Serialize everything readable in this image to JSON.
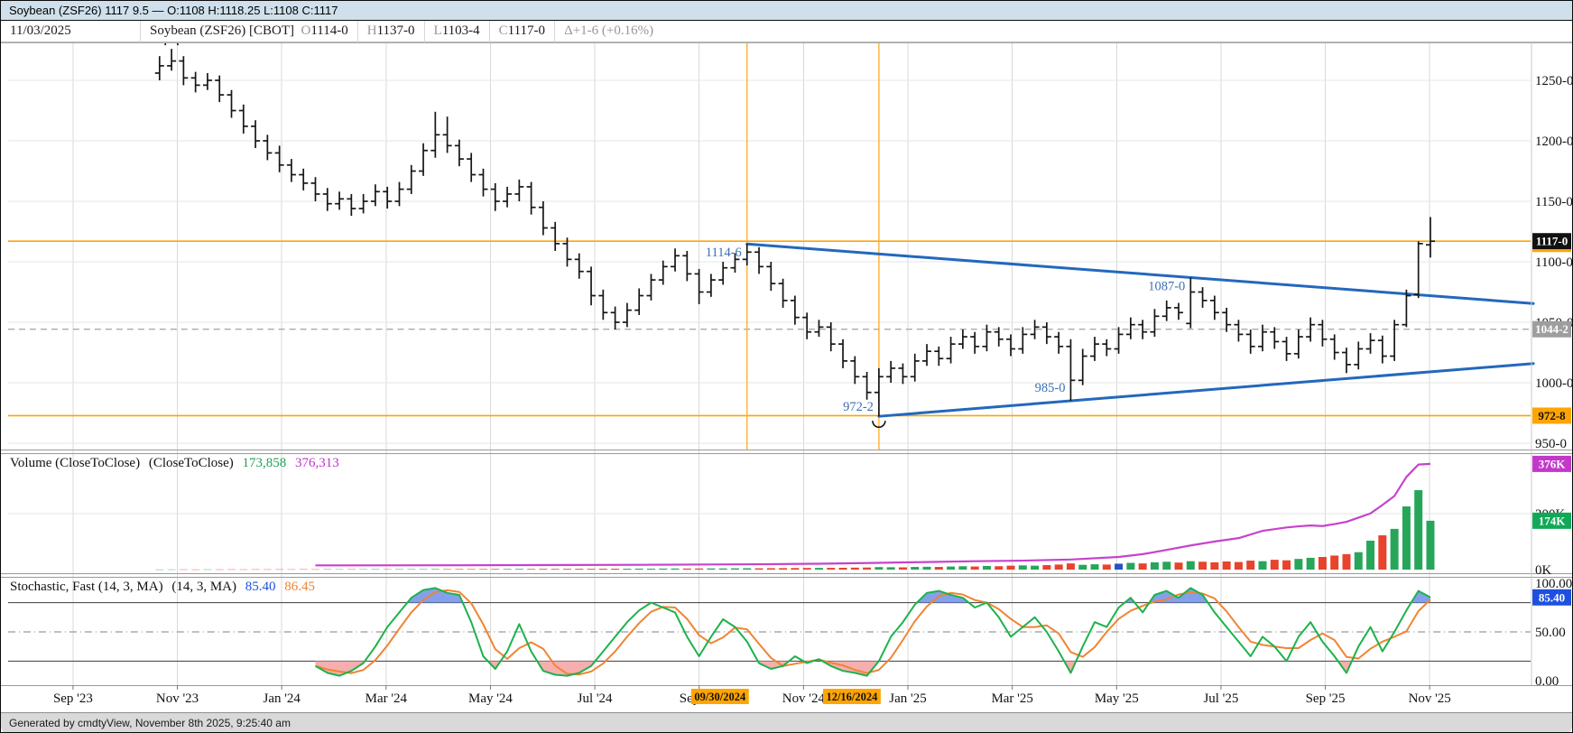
{
  "top_bar": {
    "title": "Soybean (ZSF26) 1117 9.5 — O:1108 H:1118.25 L:1108 C:1117"
  },
  "chart_header": {
    "date": "11/03/2025",
    "symbol": "Soybean (ZSF26) [CBOT]",
    "o_label": "O",
    "o_value": "1114-0",
    "h_label": "H",
    "h_value": "1137-0",
    "l_label": "L",
    "l_value": "1103-4",
    "c_label": "C",
    "c_value": "1117-0",
    "change": "Δ+1-6 (+0.16%)"
  },
  "volume_legend": {
    "title": "Volume (CloseToClose)",
    "sub": "(CloseToClose)",
    "volume_value": "173,858",
    "oi_value": "376,313"
  },
  "stoch_legend": {
    "title": "Stochastic, Fast (14, 3, MA)",
    "sub": "(14, 3, MA)",
    "k_value": "85.40",
    "d_value": "86.45"
  },
  "footer": {
    "text": "Generated by cmdtyView, November 8th 2025, 9:25:40 am"
  },
  "colors": {
    "topbar_bg": "#cfe0ec",
    "bar_black": "#161616",
    "accent_orange": "#FFA500",
    "line_orange": "#FFB033",
    "trend_blue": "#2368BC",
    "anno_blue": "#3C6FB1",
    "grid_v": "#d9d9d9",
    "grid_h": "#e6e6e6",
    "vol_up": "#27A65A",
    "vol_down": "#E8432C",
    "vol_blue": "#2353C4",
    "oi_magenta": "#C643CC",
    "stoch_k_green": "#1DB24B",
    "stoch_d_orange": "#F08433",
    "stoch_fill_blue": "#6E8FE8",
    "stoch_fill_red": "#F5A0A0",
    "badge_gray": "#9E9E9E",
    "badge_green": "#0FA958",
    "badge_magenta": "#C238C9",
    "badge_blue": "#1D50E0"
  },
  "chart_data": {
    "type": "ohlc",
    "title": "Soybean (ZSF26) [CBOT] weekly",
    "price_range": [
      944,
      1282
    ],
    "x_ticks": [
      "Sep '23",
      "Nov '23",
      "Jan '24",
      "Mar '24",
      "May '24",
      "Jul '24",
      "Sep '24",
      "Nov '24",
      "Jan '25",
      "Mar '25",
      "May '25",
      "Jul '25",
      "Sep '25",
      "Nov '25"
    ],
    "date_flags": [
      {
        "label": "09/30/2024",
        "week": 49
      },
      {
        "label": "12/16/2024",
        "week": 60
      }
    ],
    "right_axis": {
      "price_ticks": [
        [
          "1250-0",
          1250
        ],
        [
          "1200-0",
          1200
        ],
        [
          "1150-0",
          1150
        ],
        [
          "1100-0",
          1100
        ],
        [
          "1050-0",
          1050
        ],
        [
          "1000-0",
          1000
        ],
        [
          "950-0",
          950
        ]
      ],
      "volume_ticks": [
        [
          "0K",
          0
        ],
        [
          "200K",
          200
        ]
      ],
      "stoch_ticks": [
        [
          "100.00",
          100
        ],
        [
          "50.00",
          50
        ],
        [
          "0.00",
          0
        ]
      ],
      "badges": [
        {
          "panel": "main",
          "value": 1117,
          "label": "1117-0",
          "bg": "#111111",
          "fg": "#ffffff",
          "accent": "#FFA500"
        },
        {
          "panel": "main",
          "value": 1044.25,
          "label": "1044-2",
          "bg": "#9E9E9E",
          "fg": "#ffffff"
        },
        {
          "panel": "main",
          "value": 972.8,
          "label": "972-8",
          "bg": "#FFA500",
          "fg": "#111111"
        },
        {
          "panel": "vol",
          "value": 376.3,
          "label": "376K",
          "bg": "#C238C9",
          "fg": "#ffffff"
        },
        {
          "panel": "vol",
          "value": 174,
          "label": "174K",
          "bg": "#0FA958",
          "fg": "#ffffff"
        },
        {
          "panel": "stoch",
          "value": 85.4,
          "label": "85.40",
          "bg": "#1D50E0",
          "fg": "#ffffff"
        }
      ]
    },
    "levels": {
      "last_price": 1117,
      "dashed_level": 1044.25,
      "support_level": 972.8,
      "event_weeks": [
        49,
        60
      ]
    },
    "trendlines": [
      {
        "week": 49,
        "price": 1114.75,
        "end_price": 1065.5
      },
      {
        "week": 60,
        "price": 972.25,
        "end_price": 1015.9
      }
    ],
    "annotations": [
      {
        "text": "1114-6",
        "week": 49,
        "price": 1114.75,
        "dy": 14
      },
      {
        "text": "972-2",
        "week": 60,
        "price": 972.25,
        "dy": -6
      },
      {
        "text": "985-0",
        "week": 76,
        "price": 985,
        "dy": -10
      },
      {
        "text": "1087-0",
        "week": 86,
        "price": 1087,
        "dy": 14
      }
    ],
    "swing_markers": [
      {
        "type": "high",
        "week": 1,
        "price": 1276
      },
      {
        "type": "low",
        "week": 60,
        "price": 972.25
      }
    ],
    "bars": [
      [
        1256,
        1270,
        1250,
        1262
      ],
      [
        1262,
        1276,
        1258,
        1266
      ],
      [
        1266,
        1270,
        1246,
        1252
      ],
      [
        1252,
        1257,
        1240,
        1246
      ],
      [
        1246,
        1256,
        1242,
        1250
      ],
      [
        1250,
        1254,
        1232,
        1238
      ],
      [
        1238,
        1242,
        1219,
        1225
      ],
      [
        1225,
        1230,
        1206,
        1212
      ],
      [
        1212,
        1217,
        1194,
        1200
      ],
      [
        1200,
        1205,
        1184,
        1190
      ],
      [
        1190,
        1196,
        1174,
        1180
      ],
      [
        1180,
        1185,
        1166,
        1172
      ],
      [
        1172,
        1177,
        1159,
        1165
      ],
      [
        1165,
        1170,
        1150,
        1156
      ],
      [
        1156,
        1161,
        1142,
        1148
      ],
      [
        1148,
        1158,
        1143,
        1152
      ],
      [
        1152,
        1156,
        1138,
        1144
      ],
      [
        1144,
        1156,
        1140,
        1150
      ],
      [
        1150,
        1164,
        1146,
        1158
      ],
      [
        1158,
        1162,
        1144,
        1150
      ],
      [
        1150,
        1166,
        1146,
        1160
      ],
      [
        1160,
        1180,
        1156,
        1175
      ],
      [
        1175,
        1198,
        1171,
        1192
      ],
      [
        1192,
        1224,
        1186,
        1205
      ],
      [
        1205,
        1220,
        1190,
        1196
      ],
      [
        1196,
        1201,
        1179,
        1185
      ],
      [
        1185,
        1190,
        1166,
        1172
      ],
      [
        1172,
        1177,
        1154,
        1160
      ],
      [
        1160,
        1165,
        1142,
        1150
      ],
      [
        1150,
        1162,
        1145,
        1156
      ],
      [
        1156,
        1168,
        1150,
        1162
      ],
      [
        1162,
        1166,
        1139,
        1145
      ],
      [
        1145,
        1150,
        1122,
        1128
      ],
      [
        1128,
        1133,
        1109,
        1115
      ],
      [
        1115,
        1120,
        1096,
        1102
      ],
      [
        1102,
        1107,
        1086,
        1092
      ],
      [
        1092,
        1096,
        1064,
        1072
      ],
      [
        1072,
        1077,
        1052,
        1058
      ],
      [
        1058,
        1063,
        1044,
        1050
      ],
      [
        1050,
        1066,
        1046,
        1060
      ],
      [
        1060,
        1078,
        1056,
        1072
      ],
      [
        1072,
        1090,
        1068,
        1085
      ],
      [
        1085,
        1101,
        1081,
        1096
      ],
      [
        1096,
        1111,
        1092,
        1105
      ],
      [
        1105,
        1109,
        1084,
        1090
      ],
      [
        1090,
        1094,
        1065,
        1075
      ],
      [
        1075,
        1090,
        1071,
        1085
      ],
      [
        1085,
        1100,
        1081,
        1095
      ],
      [
        1095,
        1107,
        1091,
        1102
      ],
      [
        1102,
        1114.75,
        1097,
        1108
      ],
      [
        1108,
        1112,
        1090,
        1096
      ],
      [
        1096,
        1100,
        1076,
        1082
      ],
      [
        1082,
        1086,
        1062,
        1068
      ],
      [
        1068,
        1072,
        1048,
        1054
      ],
      [
        1054,
        1058,
        1036,
        1042
      ],
      [
        1042,
        1052,
        1038,
        1046
      ],
      [
        1046,
        1050,
        1026,
        1032
      ],
      [
        1032,
        1036,
        1012,
        1018
      ],
      [
        1018,
        1022,
        999,
        1005
      ],
      [
        1005,
        1009,
        986,
        992
      ],
      [
        992,
        1012,
        972.25,
        1005
      ],
      [
        1005,
        1018,
        1000,
        1012
      ],
      [
        1012,
        1016,
        999,
        1005
      ],
      [
        1005,
        1024,
        1001,
        1018
      ],
      [
        1018,
        1032,
        1014,
        1026
      ],
      [
        1026,
        1030,
        1014,
        1020
      ],
      [
        1020,
        1038,
        1016,
        1032
      ],
      [
        1032,
        1044,
        1028,
        1038
      ],
      [
        1038,
        1042,
        1024,
        1030
      ],
      [
        1030,
        1048,
        1026,
        1042
      ],
      [
        1042,
        1046,
        1030,
        1036
      ],
      [
        1036,
        1040,
        1022,
        1028
      ],
      [
        1028,
        1046,
        1024,
        1040
      ],
      [
        1040,
        1052,
        1036,
        1046
      ],
      [
        1046,
        1050,
        1032,
        1038
      ],
      [
        1038,
        1042,
        1024,
        1030
      ],
      [
        1030,
        1036,
        985,
        1002
      ],
      [
        1002,
        1028,
        998,
        1022
      ],
      [
        1022,
        1038,
        1018,
        1032
      ],
      [
        1032,
        1036,
        1022,
        1028
      ],
      [
        1028,
        1046,
        1024,
        1040
      ],
      [
        1040,
        1054,
        1036,
        1048
      ],
      [
        1048,
        1052,
        1036,
        1042
      ],
      [
        1042,
        1061,
        1038,
        1055
      ],
      [
        1055,
        1068,
        1051,
        1062
      ],
      [
        1062,
        1066,
        1052,
        1058
      ],
      [
        1049,
        1087,
        1045,
        1075
      ],
      [
        1075,
        1079,
        1062,
        1068
      ],
      [
        1068,
        1072,
        1052,
        1058
      ],
      [
        1058,
        1062,
        1042,
        1048
      ],
      [
        1048,
        1052,
        1034,
        1040
      ],
      [
        1040,
        1044,
        1024,
        1030
      ],
      [
        1030,
        1048,
        1026,
        1042
      ],
      [
        1042,
        1046,
        1028,
        1034
      ],
      [
        1034,
        1038,
        1018,
        1024
      ],
      [
        1024,
        1044,
        1020,
        1038
      ],
      [
        1038,
        1054,
        1034,
        1048
      ],
      [
        1048,
        1052,
        1030,
        1036
      ],
      [
        1036,
        1040,
        1019,
        1025
      ],
      [
        1025,
        1029,
        1008,
        1015
      ],
      [
        1015,
        1034,
        1011,
        1028
      ],
      [
        1028,
        1041,
        1024,
        1035
      ],
      [
        1035,
        1039,
        1016,
        1022
      ],
      [
        1022,
        1052,
        1018,
        1048
      ],
      [
        1048,
        1077,
        1046,
        1072
      ],
      [
        1073,
        1117,
        1070,
        1115
      ],
      [
        1114,
        1137,
        1103.5,
        1117
      ]
    ],
    "volumes_k": [
      0.4,
      0.5,
      0.6,
      0.5,
      0.7,
      0.6,
      0.8,
      0.7,
      0.9,
      0.8,
      1.0,
      0.9,
      1.1,
      1.0,
      1.2,
      1.1,
      1.3,
      1.2,
      1.4,
      1.3,
      1.5,
      1.6,
      1.5,
      1.8,
      1.7,
      1.9,
      1.8,
      2.0,
      2.2,
      2.1,
      2.3,
      2.2,
      2.5,
      2.4,
      2.6,
      2.8,
      2.7,
      3.0,
      3.2,
      3.1,
      3.4,
      3.3,
      3.6,
      3.8,
      3.7,
      4.0,
      4.2,
      4.1,
      4.5,
      4.8,
      4.6,
      5.0,
      5.2,
      5.5,
      5.8,
      6.0,
      6.2,
      6.5,
      7.0,
      7.5,
      9.0,
      8.5,
      8.0,
      9.5,
      10,
      9.5,
      11,
      12,
      11,
      13,
      12,
      14,
      15,
      14,
      16,
      18,
      22,
      17,
      19,
      18,
      21,
      24,
      22,
      26,
      28,
      25,
      30,
      28,
      26,
      29,
      27,
      32,
      30,
      35,
      33,
      38,
      42,
      45,
      50,
      55,
      62,
      103,
      122,
      145,
      225,
      283,
      174
    ],
    "volume_blue_week": 80,
    "last_volume": 173858,
    "open_interest_k": [
      [
        13,
        15
      ],
      [
        25,
        15.5
      ],
      [
        40,
        17
      ],
      [
        50,
        19
      ],
      [
        55,
        21
      ],
      [
        60,
        24
      ],
      [
        64,
        27
      ],
      [
        68,
        30
      ],
      [
        72,
        32
      ],
      [
        76,
        36
      ],
      [
        80,
        45
      ],
      [
        82,
        55
      ],
      [
        84,
        70
      ],
      [
        86,
        86
      ],
      [
        88,
        100
      ],
      [
        90,
        112
      ],
      [
        92,
        138
      ],
      [
        94,
        150
      ],
      [
        95,
        154
      ],
      [
        96,
        157
      ],
      [
        97,
        155
      ],
      [
        98,
        162
      ],
      [
        99,
        170
      ],
      [
        100,
        185
      ],
      [
        101,
        200
      ],
      [
        102,
        230
      ],
      [
        103,
        262
      ],
      [
        104,
        330
      ],
      [
        105,
        374
      ],
      [
        106,
        376.3
      ]
    ],
    "stochastic": {
      "start_week": 13,
      "upper_band": 80,
      "mid_band": 50,
      "lower_band": 20,
      "k": [
        15,
        8,
        5,
        10,
        18,
        35,
        55,
        70,
        85,
        93,
        95,
        90,
        88,
        60,
        25,
        12,
        30,
        58,
        30,
        10,
        6,
        5,
        8,
        15,
        30,
        45,
        60,
        72,
        80,
        75,
        70,
        45,
        25,
        45,
        63,
        55,
        40,
        18,
        12,
        15,
        25,
        18,
        22,
        15,
        10,
        8,
        5,
        20,
        45,
        60,
        78,
        90,
        92,
        88,
        85,
        75,
        80,
        65,
        45,
        55,
        65,
        50,
        30,
        8,
        35,
        60,
        55,
        75,
        85,
        70,
        88,
        92,
        85,
        95,
        88,
        70,
        55,
        40,
        25,
        45,
        35,
        20,
        45,
        60,
        40,
        25,
        8,
        35,
        55,
        30,
        50,
        72,
        92,
        85.4
      ],
      "last_k": 85.4,
      "last_d": 86.45
    }
  }
}
